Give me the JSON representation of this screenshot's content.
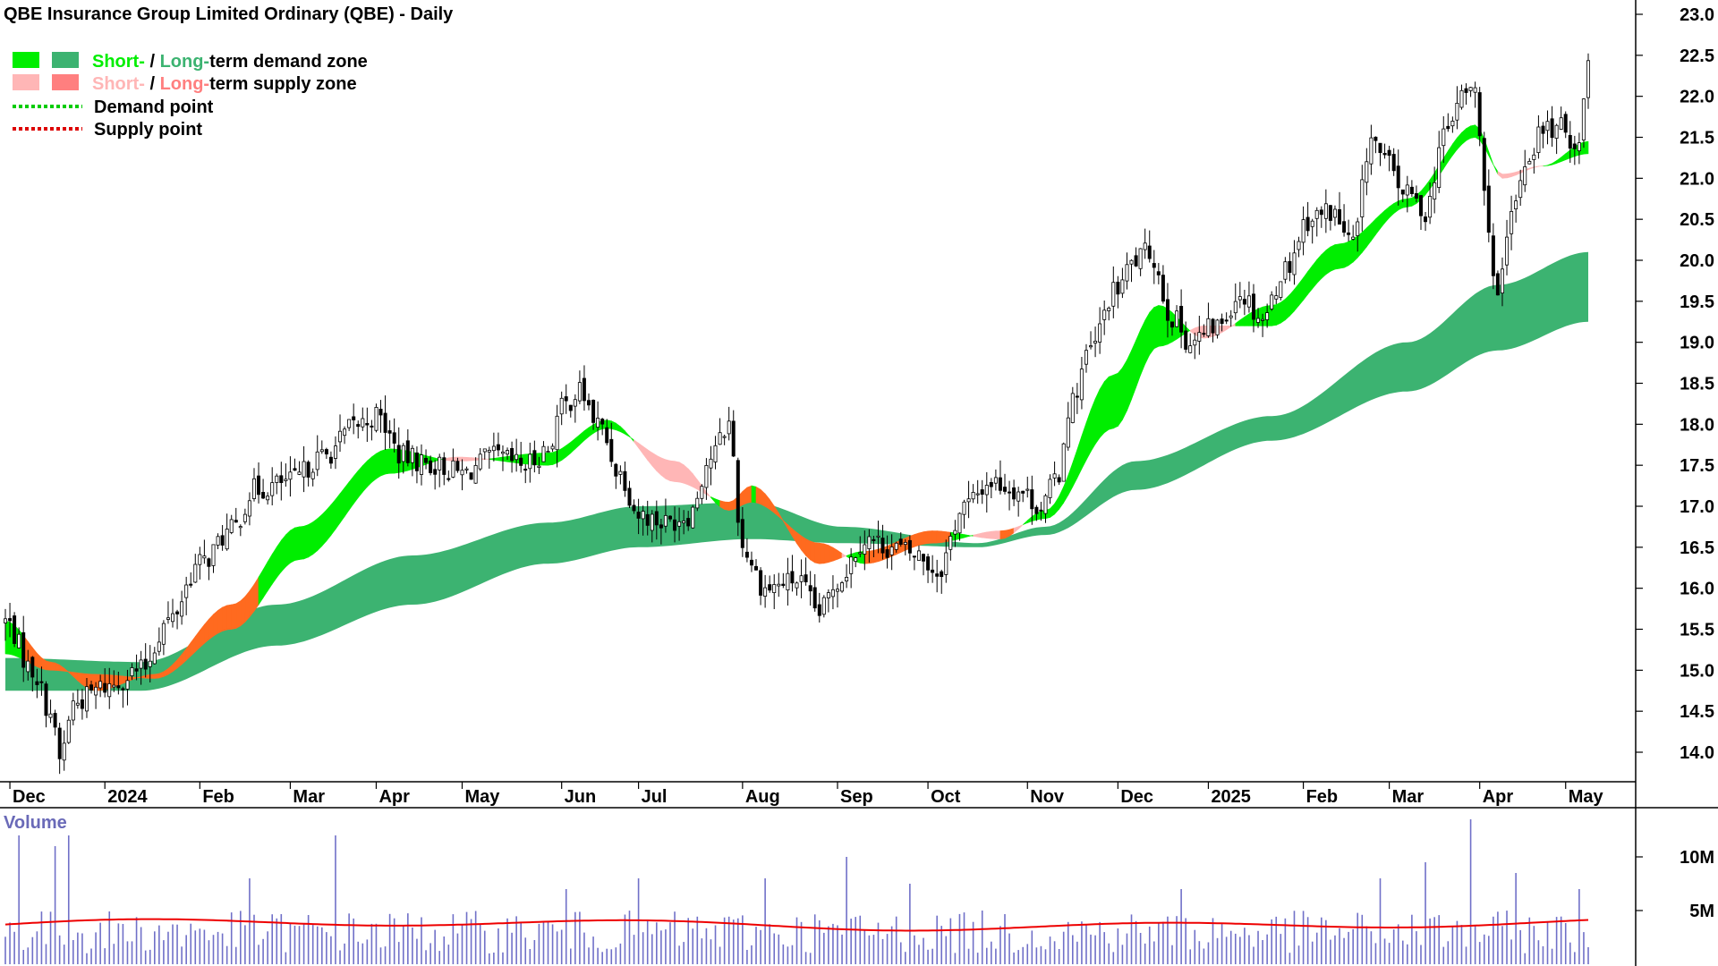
{
  "title": "QBE Insurance Group Limited Ordinary (QBE) - Daily",
  "legend": {
    "demand_zone": {
      "short": "Short-",
      "sep": " / ",
      "long": "Long-",
      "rest": "term demand zone"
    },
    "supply_zone": {
      "short": "Short-",
      "sep": " / ",
      "long": "Long-",
      "rest": "term supply zone"
    },
    "demand_point": "Demand point",
    "supply_point": "Supply point"
  },
  "colors": {
    "short_demand": "#00ee00",
    "long_demand": "#3cb371",
    "short_supply": "#ffb6b6",
    "long_supply": "#ff7f7f",
    "zone_overlap": "#ff6a1f",
    "demand_point": "#00cc00",
    "supply_point": "#dd0000",
    "volume_bar": "#7070c8",
    "volume_avg": "#ee0000",
    "volume_label": "#6a6ab8"
  },
  "volume_panel": {
    "label": "Volume"
  },
  "chart_data": {
    "type": "candlestick",
    "title": "QBE Insurance Group Limited Ordinary (QBE) - Daily",
    "y_axis": {
      "ticks": [
        14.0,
        14.5,
        15.0,
        15.5,
        16.0,
        16.5,
        17.0,
        17.5,
        18.0,
        18.5,
        19.0,
        19.5,
        20.0,
        20.5,
        21.0,
        21.5,
        22.0,
        22.5,
        23.0
      ],
      "ylim": [
        13.6,
        23.15
      ],
      "side": "right"
    },
    "x_axis": {
      "labels": [
        "Dec",
        "2024",
        "Feb",
        "Mar",
        "Apr",
        "May",
        "Jun",
        "Jul",
        "Aug",
        "Sep",
        "Oct",
        "Nov",
        "Dec",
        "2025",
        "Feb",
        "Mar",
        "Apr",
        "May"
      ],
      "label_index": [
        1,
        22,
        43,
        63,
        82,
        101,
        123,
        140,
        163,
        184,
        204,
        226,
        246,
        266,
        287,
        306,
        326,
        345
      ],
      "bold": [
        "2024",
        "2025"
      ]
    },
    "price_anchors": [
      {
        "i": 0,
        "v": 15.6
      },
      {
        "i": 6,
        "v": 15.0
      },
      {
        "i": 10,
        "v": 14.5
      },
      {
        "i": 12,
        "v": 13.9
      },
      {
        "i": 15,
        "v": 14.6
      },
      {
        "i": 22,
        "v": 14.8
      },
      {
        "i": 30,
        "v": 15.0
      },
      {
        "i": 36,
        "v": 15.6
      },
      {
        "i": 43,
        "v": 16.3
      },
      {
        "i": 50,
        "v": 16.7
      },
      {
        "i": 55,
        "v": 17.2
      },
      {
        "i": 63,
        "v": 17.3
      },
      {
        "i": 70,
        "v": 17.6
      },
      {
        "i": 78,
        "v": 18.0
      },
      {
        "i": 82,
        "v": 18.1
      },
      {
        "i": 88,
        "v": 17.6
      },
      {
        "i": 95,
        "v": 17.5
      },
      {
        "i": 101,
        "v": 17.4
      },
      {
        "i": 108,
        "v": 17.6
      },
      {
        "i": 115,
        "v": 17.5
      },
      {
        "i": 120,
        "v": 17.7
      },
      {
        "i": 123,
        "v": 18.2
      },
      {
        "i": 127,
        "v": 18.4
      },
      {
        "i": 131,
        "v": 18.0
      },
      {
        "i": 136,
        "v": 17.4
      },
      {
        "i": 140,
        "v": 16.9
      },
      {
        "i": 146,
        "v": 16.8
      },
      {
        "i": 151,
        "v": 16.9
      },
      {
        "i": 156,
        "v": 17.6
      },
      {
        "i": 160,
        "v": 18.0
      },
      {
        "i": 163,
        "v": 16.5
      },
      {
        "i": 168,
        "v": 16.0
      },
      {
        "i": 175,
        "v": 16.1
      },
      {
        "i": 180,
        "v": 15.7
      },
      {
        "i": 184,
        "v": 16.1
      },
      {
        "i": 190,
        "v": 16.6
      },
      {
        "i": 196,
        "v": 16.5
      },
      {
        "i": 202,
        "v": 16.4
      },
      {
        "i": 206,
        "v": 16.2
      },
      {
        "i": 212,
        "v": 17.0
      },
      {
        "i": 218,
        "v": 17.3
      },
      {
        "i": 224,
        "v": 17.2
      },
      {
        "i": 229,
        "v": 17.0
      },
      {
        "i": 233,
        "v": 17.4
      },
      {
        "i": 235,
        "v": 18.2
      },
      {
        "i": 240,
        "v": 18.9
      },
      {
        "i": 245,
        "v": 19.6
      },
      {
        "i": 250,
        "v": 20.0
      },
      {
        "i": 253,
        "v": 20.1
      },
      {
        "i": 258,
        "v": 19.3
      },
      {
        "i": 262,
        "v": 19.0
      },
      {
        "i": 268,
        "v": 19.2
      },
      {
        "i": 273,
        "v": 19.6
      },
      {
        "i": 278,
        "v": 19.3
      },
      {
        "i": 283,
        "v": 19.9
      },
      {
        "i": 288,
        "v": 20.5
      },
      {
        "i": 293,
        "v": 20.6
      },
      {
        "i": 298,
        "v": 20.2
      },
      {
        "i": 302,
        "v": 21.5
      },
      {
        "i": 305,
        "v": 21.2
      },
      {
        "i": 310,
        "v": 20.8
      },
      {
        "i": 314,
        "v": 20.6
      },
      {
        "i": 318,
        "v": 21.5
      },
      {
        "i": 322,
        "v": 22.0
      },
      {
        "i": 325,
        "v": 22.1
      },
      {
        "i": 327,
        "v": 20.8
      },
      {
        "i": 330,
        "v": 19.5
      },
      {
        "i": 333,
        "v": 20.5
      },
      {
        "i": 336,
        "v": 21.2
      },
      {
        "i": 340,
        "v": 21.6
      },
      {
        "i": 344,
        "v": 21.6
      },
      {
        "i": 348,
        "v": 21.4
      },
      {
        "i": 350,
        "v": 22.5
      }
    ],
    "long_term_zone": {
      "upper": [
        {
          "i": 0,
          "v": 15.15
        },
        {
          "i": 30,
          "v": 15.1
        },
        {
          "i": 60,
          "v": 15.8
        },
        {
          "i": 90,
          "v": 16.4
        },
        {
          "i": 120,
          "v": 16.8
        },
        {
          "i": 140,
          "v": 17.0
        },
        {
          "i": 165,
          "v": 17.05
        },
        {
          "i": 185,
          "v": 16.75
        },
        {
          "i": 215,
          "v": 16.55
        },
        {
          "i": 230,
          "v": 16.75
        },
        {
          "i": 250,
          "v": 17.55
        },
        {
          "i": 280,
          "v": 18.1
        },
        {
          "i": 310,
          "v": 19.0
        },
        {
          "i": 330,
          "v": 19.7
        },
        {
          "i": 350,
          "v": 20.1
        }
      ],
      "lower": [
        {
          "i": 0,
          "v": 14.75
        },
        {
          "i": 30,
          "v": 14.75
        },
        {
          "i": 60,
          "v": 15.3
        },
        {
          "i": 90,
          "v": 15.8
        },
        {
          "i": 120,
          "v": 16.3
        },
        {
          "i": 140,
          "v": 16.5
        },
        {
          "i": 165,
          "v": 16.6
        },
        {
          "i": 185,
          "v": 16.55
        },
        {
          "i": 215,
          "v": 16.5
        },
        {
          "i": 230,
          "v": 16.65
        },
        {
          "i": 250,
          "v": 17.2
        },
        {
          "i": 280,
          "v": 17.8
        },
        {
          "i": 310,
          "v": 18.4
        },
        {
          "i": 330,
          "v": 18.9
        },
        {
          "i": 350,
          "v": 19.25
        }
      ]
    },
    "short_term_zone": {
      "a": [
        {
          "i": 0,
          "v": 15.6
        },
        {
          "i": 10,
          "v": 15.1
        },
        {
          "i": 20,
          "v": 14.75
        },
        {
          "i": 33,
          "v": 14.95
        },
        {
          "i": 50,
          "v": 15.8
        },
        {
          "i": 65,
          "v": 16.75
        },
        {
          "i": 85,
          "v": 17.7
        },
        {
          "i": 100,
          "v": 17.55
        },
        {
          "i": 120,
          "v": 17.65
        },
        {
          "i": 133,
          "v": 18.05
        },
        {
          "i": 148,
          "v": 17.3
        },
        {
          "i": 160,
          "v": 17.05
        },
        {
          "i": 165,
          "v": 17.25
        },
        {
          "i": 180,
          "v": 16.3
        },
        {
          "i": 190,
          "v": 16.45
        },
        {
          "i": 205,
          "v": 16.7
        },
        {
          "i": 220,
          "v": 16.6
        },
        {
          "i": 230,
          "v": 16.95
        },
        {
          "i": 245,
          "v": 18.6
        },
        {
          "i": 255,
          "v": 19.45
        },
        {
          "i": 265,
          "v": 19.05
        },
        {
          "i": 280,
          "v": 19.45
        },
        {
          "i": 295,
          "v": 20.2
        },
        {
          "i": 310,
          "v": 20.75
        },
        {
          "i": 325,
          "v": 21.65
        },
        {
          "i": 331,
          "v": 21.0
        },
        {
          "i": 340,
          "v": 21.15
        },
        {
          "i": 350,
          "v": 21.45
        }
      ],
      "b": [
        {
          "i": 0,
          "v": 15.2
        },
        {
          "i": 10,
          "v": 15.0
        },
        {
          "i": 20,
          "v": 14.95
        },
        {
          "i": 33,
          "v": 14.9
        },
        {
          "i": 50,
          "v": 15.5
        },
        {
          "i": 65,
          "v": 16.35
        },
        {
          "i": 85,
          "v": 17.4
        },
        {
          "i": 100,
          "v": 17.6
        },
        {
          "i": 120,
          "v": 17.5
        },
        {
          "i": 133,
          "v": 17.95
        },
        {
          "i": 148,
          "v": 17.55
        },
        {
          "i": 160,
          "v": 16.95
        },
        {
          "i": 165,
          "v": 17.05
        },
        {
          "i": 180,
          "v": 16.55
        },
        {
          "i": 190,
          "v": 16.3
        },
        {
          "i": 205,
          "v": 16.55
        },
        {
          "i": 220,
          "v": 16.7
        },
        {
          "i": 230,
          "v": 16.85
        },
        {
          "i": 245,
          "v": 17.95
        },
        {
          "i": 255,
          "v": 18.95
        },
        {
          "i": 265,
          "v": 19.2
        },
        {
          "i": 280,
          "v": 19.2
        },
        {
          "i": 295,
          "v": 19.9
        },
        {
          "i": 310,
          "v": 20.65
        },
        {
          "i": 325,
          "v": 21.5
        },
        {
          "i": 331,
          "v": 21.05
        },
        {
          "i": 340,
          "v": 21.15
        },
        {
          "i": 350,
          "v": 21.3
        }
      ]
    },
    "volume": {
      "ticks": [
        {
          "v": 10,
          "label": "10M"
        },
        {
          "v": 5,
          "label": "5M"
        }
      ],
      "ylim": [
        0,
        14
      ],
      "average_level": 3.7,
      "spikes": [
        {
          "i": 3,
          "v": 12.0
        },
        {
          "i": 11,
          "v": 11.0
        },
        {
          "i": 14,
          "v": 12.0
        },
        {
          "i": 54,
          "v": 8.0
        },
        {
          "i": 73,
          "v": 12.0
        },
        {
          "i": 124,
          "v": 7.0
        },
        {
          "i": 140,
          "v": 8.0
        },
        {
          "i": 168,
          "v": 8.0
        },
        {
          "i": 186,
          "v": 10.0
        },
        {
          "i": 200,
          "v": 7.5
        },
        {
          "i": 260,
          "v": 7.0
        },
        {
          "i": 304,
          "v": 8.0
        },
        {
          "i": 314,
          "v": 9.5
        },
        {
          "i": 324,
          "v": 13.5
        },
        {
          "i": 334,
          "v": 8.5
        },
        {
          "i": 348,
          "v": 7.0
        }
      ],
      "base_range": [
        1.0,
        5.0
      ]
    }
  }
}
